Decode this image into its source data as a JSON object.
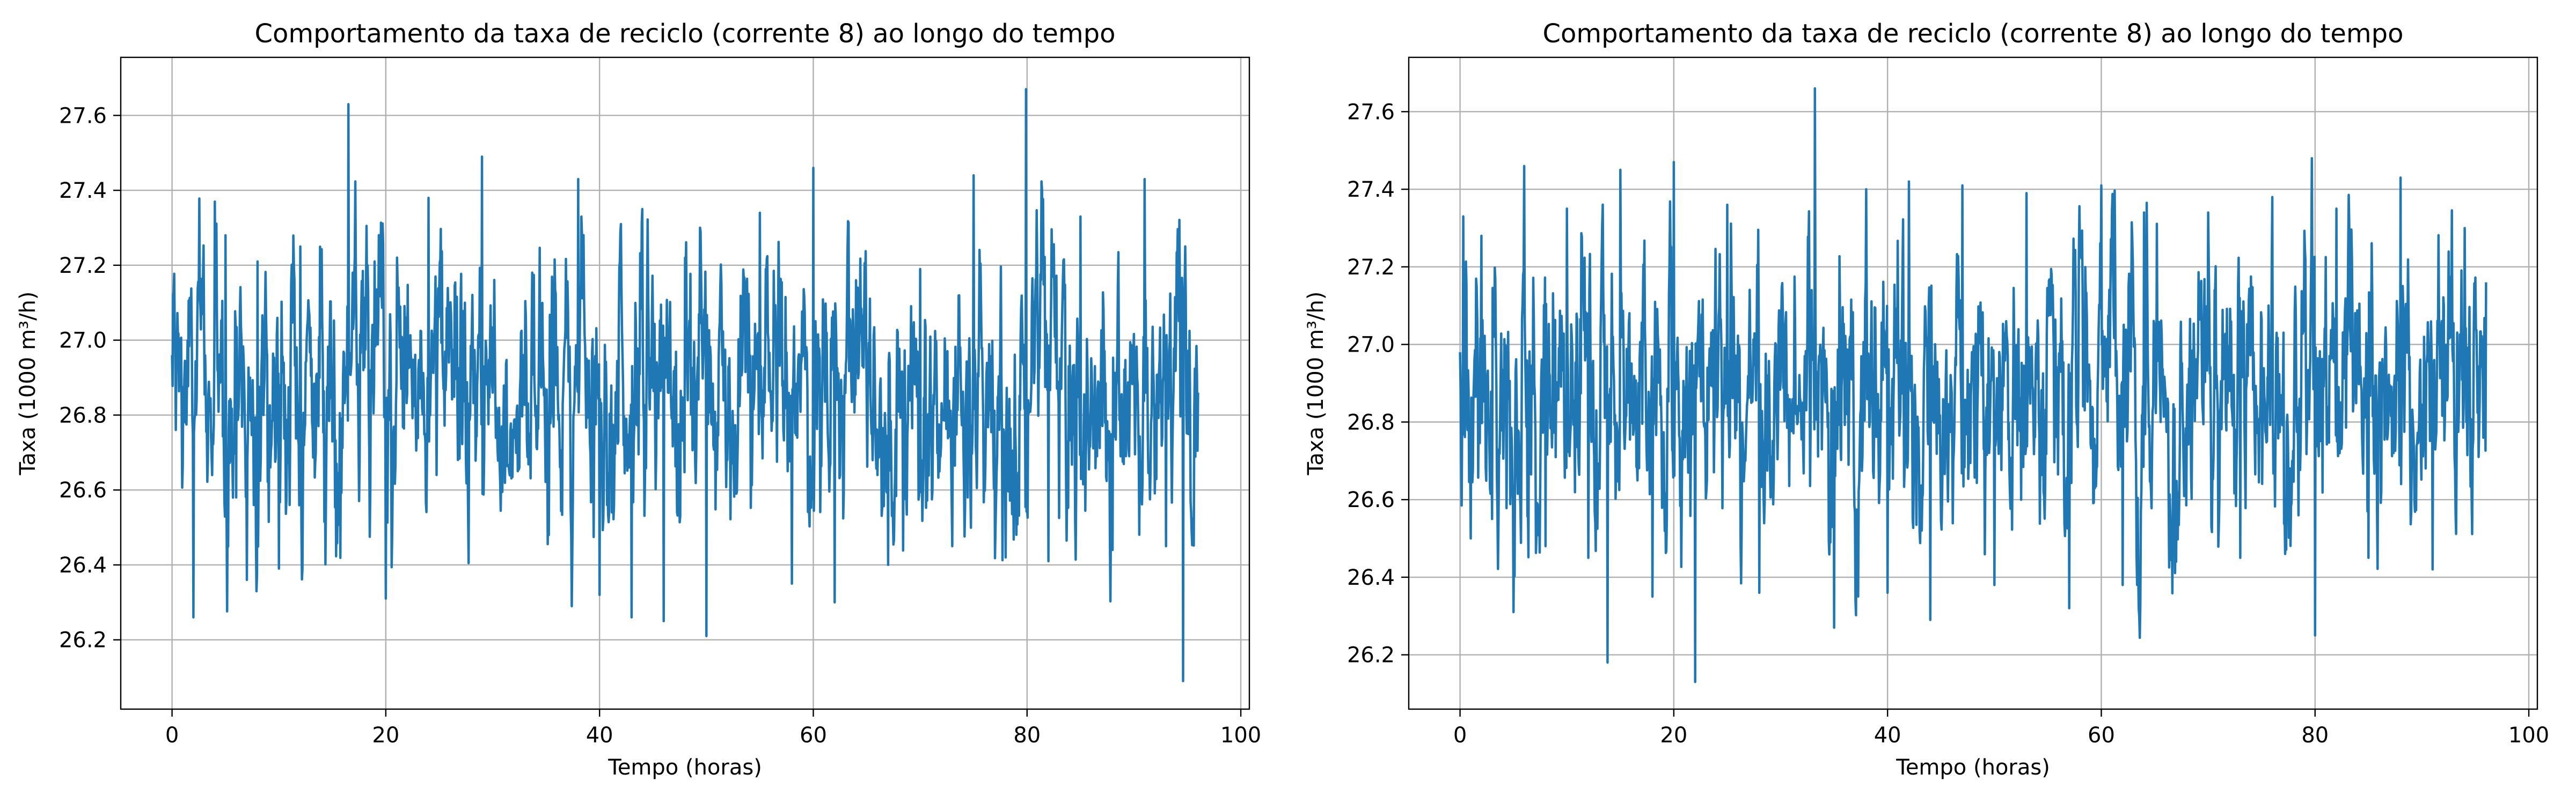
{
  "chart_data": [
    {
      "type": "line",
      "title": "Comportamento da taxa de reciclo (corrente 8) ao longo do tempo",
      "xlabel": "Tempo (horas)",
      "ylabel": "Taxa (1000 m³/h)",
      "xlim": [
        -4.8,
        100.8
      ],
      "ylim": [
        26.015,
        27.755
      ],
      "xticks": [
        0,
        20,
        40,
        60,
        80,
        100
      ],
      "yticks": [
        26.2,
        26.4,
        26.6,
        26.8,
        27.0,
        27.2,
        27.4,
        27.6
      ],
      "ytick_decimals": 1,
      "grid": true,
      "color": "#1f77b4",
      "points_per_hour": 20,
      "series": [
        {
          "x": [
            0,
            1,
            2,
            4,
            5,
            6,
            7,
            8,
            10,
            12,
            16.5,
            20,
            24,
            29,
            30,
            38,
            40,
            42,
            43,
            44,
            46,
            48,
            50,
            55,
            58,
            60,
            62,
            64,
            67,
            70,
            73,
            75,
            78,
            79.9,
            82,
            85,
            88,
            91,
            93,
            94.6,
            95,
            96
          ],
          "y": [
            26.96,
            26.66,
            26.26,
            27.37,
            27.28,
            26.58,
            26.36,
            27.21,
            26.39,
            27.25,
            27.63,
            26.31,
            27.38,
            27.49,
            26.86,
            27.43,
            26.32,
            27.31,
            26.26,
            27.35,
            26.25,
            27.22,
            26.21,
            27.34,
            26.35,
            27.46,
            26.3,
            27.16,
            26.4,
            27.19,
            26.45,
            27.44,
            26.42,
            27.67,
            26.41,
            27.33,
            26.44,
            27.43,
            26.45,
            26.09,
            26.88,
            26.86
          ]
        }
      ]
    },
    {
      "type": "line",
      "title": "Comportamento da taxa de reciclo (corrente 8) ao longo do tempo",
      "xlabel": "Tempo (horas)",
      "ylabel": "Taxa (1000 m³/h)",
      "xlim": [
        -4.8,
        100.8
      ],
      "ylim": [
        26.06,
        27.74
      ],
      "xticks": [
        0,
        20,
        40,
        60,
        80,
        100
      ],
      "yticks": [
        26.2,
        26.4,
        26.6,
        26.8,
        27.0,
        27.2,
        27.4,
        27.6
      ],
      "ytick_decimals": 1,
      "grid": true,
      "color": "#1f77b4",
      "points_per_hour": 20,
      "series": [
        {
          "x": [
            0,
            0.3,
            1,
            2,
            3,
            5,
            6,
            8,
            10,
            12,
            13.8,
            15,
            18,
            20,
            22,
            25,
            28,
            33.2,
            35,
            38,
            40,
            42,
            44,
            47,
            50,
            53,
            57,
            60,
            62,
            64,
            67,
            70,
            73,
            76,
            79.7,
            80,
            82,
            85,
            88,
            91,
            94,
            96
          ],
          "y": [
            26.98,
            27.33,
            26.5,
            27.28,
            26.55,
            26.31,
            27.46,
            26.48,
            27.35,
            26.45,
            26.18,
            27.45,
            26.35,
            27.47,
            26.13,
            27.36,
            26.36,
            27.66,
            26.27,
            27.4,
            26.36,
            27.42,
            26.29,
            27.41,
            26.38,
            27.39,
            26.32,
            27.41,
            26.38,
            27.34,
            26.44,
            27.34,
            26.45,
            27.38,
            27.48,
            26.25,
            27.35,
            26.45,
            27.43,
            26.42,
            27.3,
            27.16
          ]
        }
      ]
    }
  ]
}
